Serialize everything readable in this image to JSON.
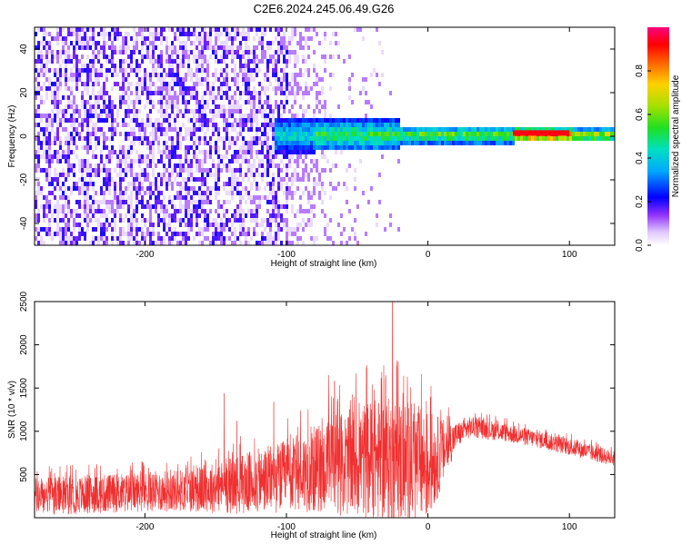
{
  "title": "C2E6.2024.245.06.49.G26",
  "colors": {
    "snr_line": "#f03030",
    "spectrogram_palette": [
      "#ffffff",
      "#e8d8ff",
      "#b070ff",
      "#8000ff",
      "#0000ff",
      "#00c8ff",
      "#00e070",
      "#a0e000",
      "#ffa000",
      "#ff2000",
      "#ff0080"
    ]
  },
  "chart_data": [
    {
      "type": "heatmap",
      "panel": "spectrogram",
      "xlabel": "Height of straight line (km)",
      "ylabel": "Frequency (Hz)",
      "xlim": [
        -278,
        132
      ],
      "ylim": [
        -50,
        50
      ],
      "xticks": [
        -200,
        -100,
        0,
        100
      ],
      "yticks": [
        -40,
        -20,
        0,
        20,
        40
      ],
      "colorbar": {
        "label": "Normalized spectral amplitude",
        "ticks": [
          "0.0",
          "0.2",
          "0.4",
          "0.6",
          "0.8"
        ],
        "range": [
          0,
          1
        ]
      },
      "signal_band": {
        "description": "broad noise for x < -100 km; concentrated Doppler line near 0 Hz for x > -110 km, strongest (0.9+) from x ≈ 60 to 100 km",
        "x_start": -110,
        "center_freq": 1.5,
        "segments": [
          {
            "x": [
              -110,
              -80
            ],
            "amp": 0.45,
            "width_hz": 8
          },
          {
            "x": [
              -80,
              -20
            ],
            "amp": 0.55,
            "width_hz": 7
          },
          {
            "x": [
              -20,
              60
            ],
            "amp": 0.6,
            "width_hz": 4
          },
          {
            "x": [
              60,
              100
            ],
            "amp": 0.95,
            "width_hz": 3
          },
          {
            "x": [
              100,
              132
            ],
            "amp": 0.7,
            "width_hz": 3
          }
        ]
      }
    },
    {
      "type": "line",
      "panel": "snr",
      "xlabel": "Height of straight line (km)",
      "ylabel": "SNR (10 * v/v)",
      "xlim": [
        -278,
        132
      ],
      "ylim": [
        0,
        2500
      ],
      "xticks": [
        -200,
        -100,
        0,
        100
      ],
      "yticks": [
        500,
        1000,
        1500,
        2000,
        2500
      ],
      "envelope": {
        "x": [
          -278,
          -250,
          -200,
          -170,
          -150,
          -120,
          -100,
          -80,
          -60,
          -40,
          -20,
          0,
          10,
          20,
          30,
          50,
          80,
          100,
          132
        ],
        "mean": [
          250,
          260,
          300,
          320,
          350,
          420,
          480,
          560,
          620,
          680,
          650,
          600,
          750,
          950,
          1050,
          1000,
          900,
          820,
          680
        ],
        "spread": [
          220,
          220,
          230,
          250,
          300,
          380,
          420,
          500,
          600,
          700,
          750,
          650,
          400,
          150,
          120,
          110,
          100,
          100,
          90
        ]
      },
      "peaks": [
        {
          "x": -144,
          "y": 1440
        },
        {
          "x": -135,
          "y": 1120
        },
        {
          "x": -109,
          "y": 1340
        },
        {
          "x": -99,
          "y": 1150
        },
        {
          "x": -90,
          "y": 1240
        },
        {
          "x": -70,
          "y": 1650
        },
        {
          "x": -66,
          "y": 1580
        },
        {
          "x": -64,
          "y": 1350
        },
        {
          "x": -40,
          "y": 1250
        },
        {
          "x": -30,
          "y": 1600
        },
        {
          "x": -25,
          "y": 2500
        },
        {
          "x": -22,
          "y": 1750
        },
        {
          "x": -10,
          "y": 1200
        }
      ]
    }
  ]
}
